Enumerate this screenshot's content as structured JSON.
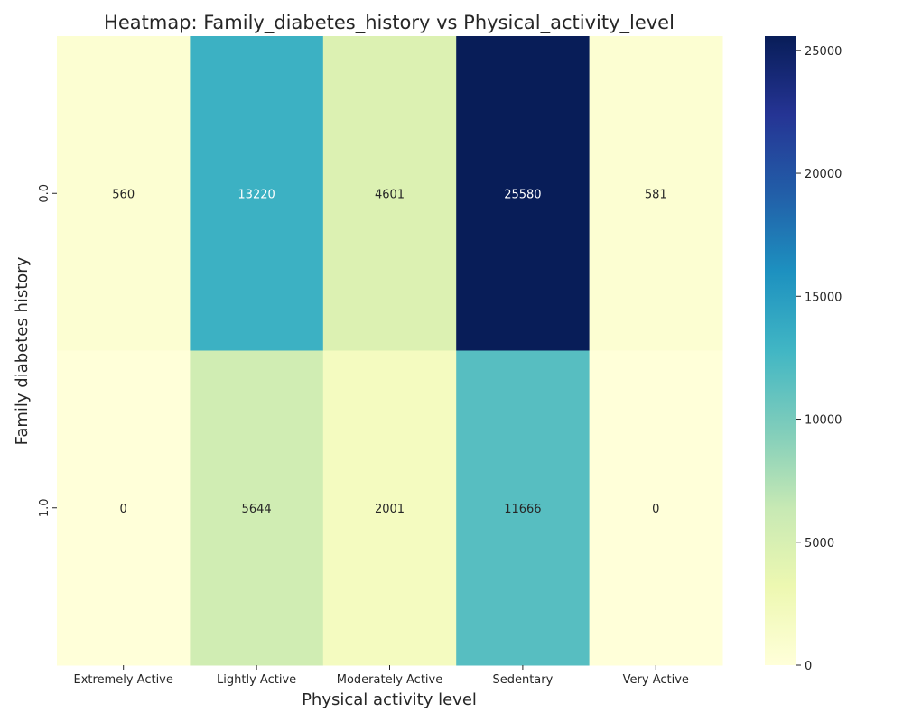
{
  "chart_data": {
    "type": "heatmap",
    "title": "Heatmap: Family_diabetes_history vs Physical_activity_level",
    "xlabel": "Physical activity level",
    "ylabel": "Family diabetes history",
    "x_categories": [
      "Extremely Active",
      "Lightly Active",
      "Moderately Active",
      "Sedentary",
      "Very Active"
    ],
    "y_categories": [
      "0.0",
      "1.0"
    ],
    "values": [
      [
        560,
        13220,
        4601,
        25580,
        581
      ],
      [
        0,
        5644,
        2001,
        11666,
        0
      ]
    ],
    "colormap": "YlGnBu",
    "colorbar": {
      "min": 0,
      "max": 25580,
      "ticks": [
        0,
        5000,
        10000,
        15000,
        20000,
        25000
      ]
    }
  }
}
